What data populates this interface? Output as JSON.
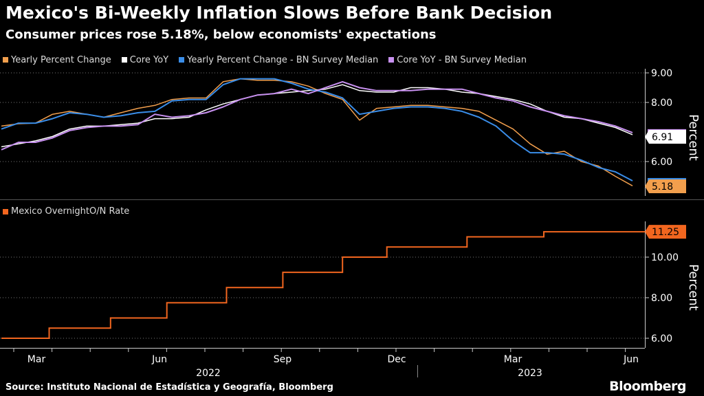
{
  "title": "Mexico's Bi-Weekly Inflation Slows Before Bank Decision",
  "subtitle": "Consumer prices rose 5.18%, below economists' expectations",
  "source": "Source: Instituto Nacional de Estadística y Geografía, Bloomberg",
  "logo": "Bloomberg",
  "colors": {
    "background": "#000000",
    "yearly": "#f29f4d",
    "core": "#ffffff",
    "yearly_survey": "#3a8de8",
    "core_survey": "#c891f0",
    "rate": "#f2661f"
  },
  "chart_data": [
    {
      "type": "line",
      "title": "",
      "ylabel": "Percent",
      "ylim": [
        5.0,
        9.5
      ],
      "yticks": [
        "9.00",
        "8.00",
        "6.00"
      ],
      "x": [
        1,
        2,
        3,
        4,
        5,
        6,
        7,
        8,
        9,
        10,
        11,
        12,
        13,
        14,
        15,
        16,
        17,
        18,
        19,
        20,
        21,
        22,
        23,
        24,
        25,
        26,
        27,
        28,
        29,
        30,
        31,
        32,
        33,
        34,
        35,
        36,
        37,
        38
      ],
      "series": [
        {
          "name": "Yearly Percent Change",
          "color": "#f29f4d",
          "last_label": "5.18",
          "values": [
            7.2,
            7.28,
            7.3,
            7.6,
            7.7,
            7.6,
            7.5,
            7.65,
            7.8,
            7.9,
            8.1,
            8.15,
            8.15,
            8.7,
            8.8,
            8.75,
            8.75,
            8.7,
            8.55,
            8.3,
            8.1,
            7.4,
            7.8,
            7.85,
            7.9,
            7.9,
            7.85,
            7.8,
            7.7,
            7.4,
            7.1,
            6.6,
            6.25,
            6.35,
            6.0,
            5.85,
            5.5,
            5.18
          ]
        },
        {
          "name": "Core YoY",
          "color": "#ffffff",
          "last_label": "6.91",
          "values": [
            6.5,
            6.6,
            6.7,
            6.85,
            7.1,
            7.2,
            7.2,
            7.25,
            7.3,
            7.45,
            7.45,
            7.5,
            7.75,
            7.95,
            8.1,
            8.25,
            8.3,
            8.35,
            8.4,
            8.45,
            8.6,
            8.4,
            8.35,
            8.35,
            8.5,
            8.5,
            8.45,
            8.35,
            8.3,
            8.2,
            8.1,
            7.95,
            7.7,
            7.5,
            7.45,
            7.3,
            7.15,
            6.91
          ]
        },
        {
          "name": "Yearly Percent Change - BN Survey Median",
          "color": "#3a8de8",
          "last_label": "",
          "values": [
            7.1,
            7.3,
            7.3,
            7.45,
            7.65,
            7.6,
            7.5,
            7.55,
            7.65,
            7.7,
            8.05,
            8.1,
            8.1,
            8.6,
            8.8,
            8.8,
            8.8,
            8.65,
            8.45,
            8.35,
            8.15,
            7.6,
            7.7,
            7.8,
            7.85,
            7.85,
            7.8,
            7.7,
            7.5,
            7.2,
            6.7,
            6.3,
            6.3,
            6.25,
            6.05,
            5.8,
            5.65,
            5.35
          ]
        },
        {
          "name": "Core YoY - BN Survey Median",
          "color": "#c891f0",
          "last_label": "",
          "values": [
            6.4,
            6.65,
            6.65,
            6.8,
            7.05,
            7.15,
            7.2,
            7.2,
            7.25,
            7.6,
            7.5,
            7.55,
            7.65,
            7.85,
            8.1,
            8.25,
            8.3,
            8.45,
            8.3,
            8.5,
            8.7,
            8.5,
            8.4,
            8.4,
            8.4,
            8.45,
            8.45,
            8.45,
            8.3,
            8.15,
            8.05,
            7.85,
            7.7,
            7.55,
            7.45,
            7.35,
            7.2,
            6.98
          ]
        }
      ]
    },
    {
      "type": "line",
      "title": "",
      "ylabel": "Percent",
      "ylim": [
        5.7,
        11.7
      ],
      "yticks": [
        "10.00",
        "8.00",
        "6.00"
      ],
      "series": [
        {
          "name": "Mexico OvernightO/N Rate",
          "color": "#f2661f",
          "last_label": "11.25",
          "steps": [
            {
              "x": 0,
              "value": 6.0
            },
            {
              "x": 2.8,
              "value": 6.5
            },
            {
              "x": 6.4,
              "value": 7.0
            },
            {
              "x": 9.7,
              "value": 7.75
            },
            {
              "x": 13.2,
              "value": 8.5
            },
            {
              "x": 16.5,
              "value": 9.25
            },
            {
              "x": 20.0,
              "value": 10.0
            },
            {
              "x": 22.6,
              "value": 10.5
            },
            {
              "x": 27.3,
              "value": 11.0
            },
            {
              "x": 31.8,
              "value": 11.25
            },
            {
              "x": 38.0,
              "value": 11.25
            }
          ]
        }
      ]
    }
  ],
  "x_axis": {
    "months": [
      "Mar",
      "Jun",
      "Sep",
      "Dec",
      "Mar",
      "Jun"
    ],
    "years": [
      "2022",
      "2023"
    ]
  }
}
